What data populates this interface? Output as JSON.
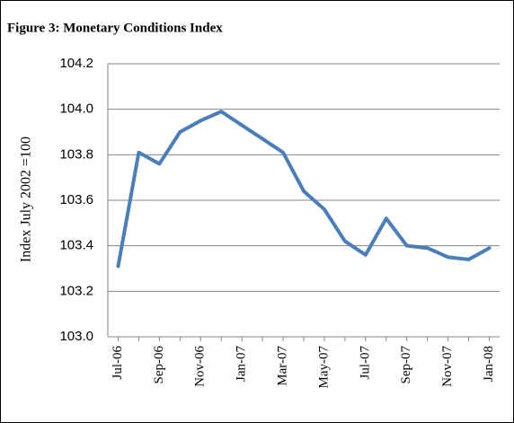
{
  "chart_data": {
    "type": "line",
    "title": "Figure 3: Monetary Conditions Index",
    "y_label": "Index July 2002 =100",
    "categories": [
      "Jul-06",
      null,
      "Sep-06",
      null,
      "Nov-06",
      null,
      "Jan-07",
      null,
      "Mar-07",
      null,
      "May-07",
      null,
      "Jul-07",
      null,
      "Sep-07",
      null,
      "Nov-07",
      null,
      "Jan-08"
    ],
    "values": [
      103.31,
      103.81,
      103.76,
      103.9,
      103.95,
      103.99,
      103.93,
      103.87,
      103.81,
      103.64,
      103.56,
      103.42,
      103.36,
      103.52,
      103.4,
      103.39,
      103.35,
      103.34,
      103.39
    ],
    "color": "#4a7ebb",
    "ylim": [
      103.0,
      104.2
    ],
    "yticks": [
      {
        "value": 103,
        "label": "103.0"
      },
      103.2,
      103.4,
      103.6,
      103.8,
      {
        "value": 104,
        "label": "104.0"
      },
      104.2
    ],
    "grid": true
  }
}
